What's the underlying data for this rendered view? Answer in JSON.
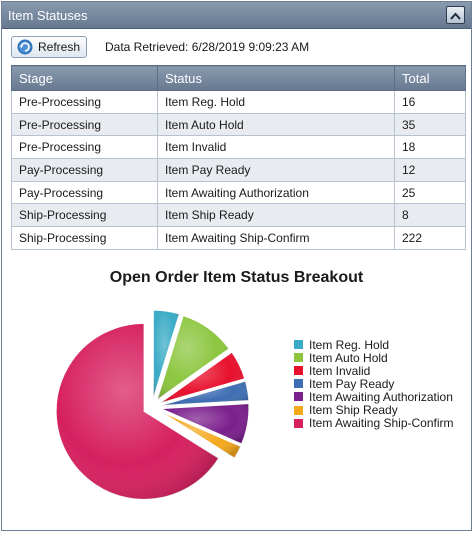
{
  "panel": {
    "title": "Item Statuses"
  },
  "toolbar": {
    "refresh_label": "Refresh",
    "retrieved_label": "Data Retrieved:",
    "retrieved_value": "6/28/2019 9:09:23 AM"
  },
  "table": {
    "headers": [
      "Stage",
      "Status",
      "Total"
    ],
    "rows": [
      {
        "stage": "Pre-Processing",
        "status": "Item Reg. Hold",
        "total": "16"
      },
      {
        "stage": "Pre-Processing",
        "status": "Item Auto Hold",
        "total": "35"
      },
      {
        "stage": "Pre-Processing",
        "status": "Item Invalid",
        "total": "18"
      },
      {
        "stage": "Pay-Processing",
        "status": "Item Pay Ready",
        "total": "12"
      },
      {
        "stage": "Pay-Processing",
        "status": "Item Awaiting Authorization",
        "total": "25"
      },
      {
        "stage": "Ship-Processing",
        "status": "Item Ship Ready",
        "total": "8"
      },
      {
        "stage": "Ship-Processing",
        "status": "Item Awaiting Ship-Confirm",
        "total": "222"
      }
    ]
  },
  "chart_data": {
    "type": "pie",
    "title": "Open Order Item Status Breakout",
    "categories": [
      "Item Reg. Hold",
      "Item Auto Hold",
      "Item Invalid",
      "Item Pay Ready",
      "Item Awaiting Authorization",
      "Item Ship Ready",
      "Item Awaiting Ship-Confirm"
    ],
    "values": [
      16,
      35,
      18,
      12,
      25,
      8,
      222
    ],
    "colors": [
      "#3aabc6",
      "#8cc63f",
      "#e8112d",
      "#3e6eb3",
      "#7b1f8c",
      "#f5a81c",
      "#d6205f"
    ],
    "exploded": true,
    "legend_position": "right"
  }
}
